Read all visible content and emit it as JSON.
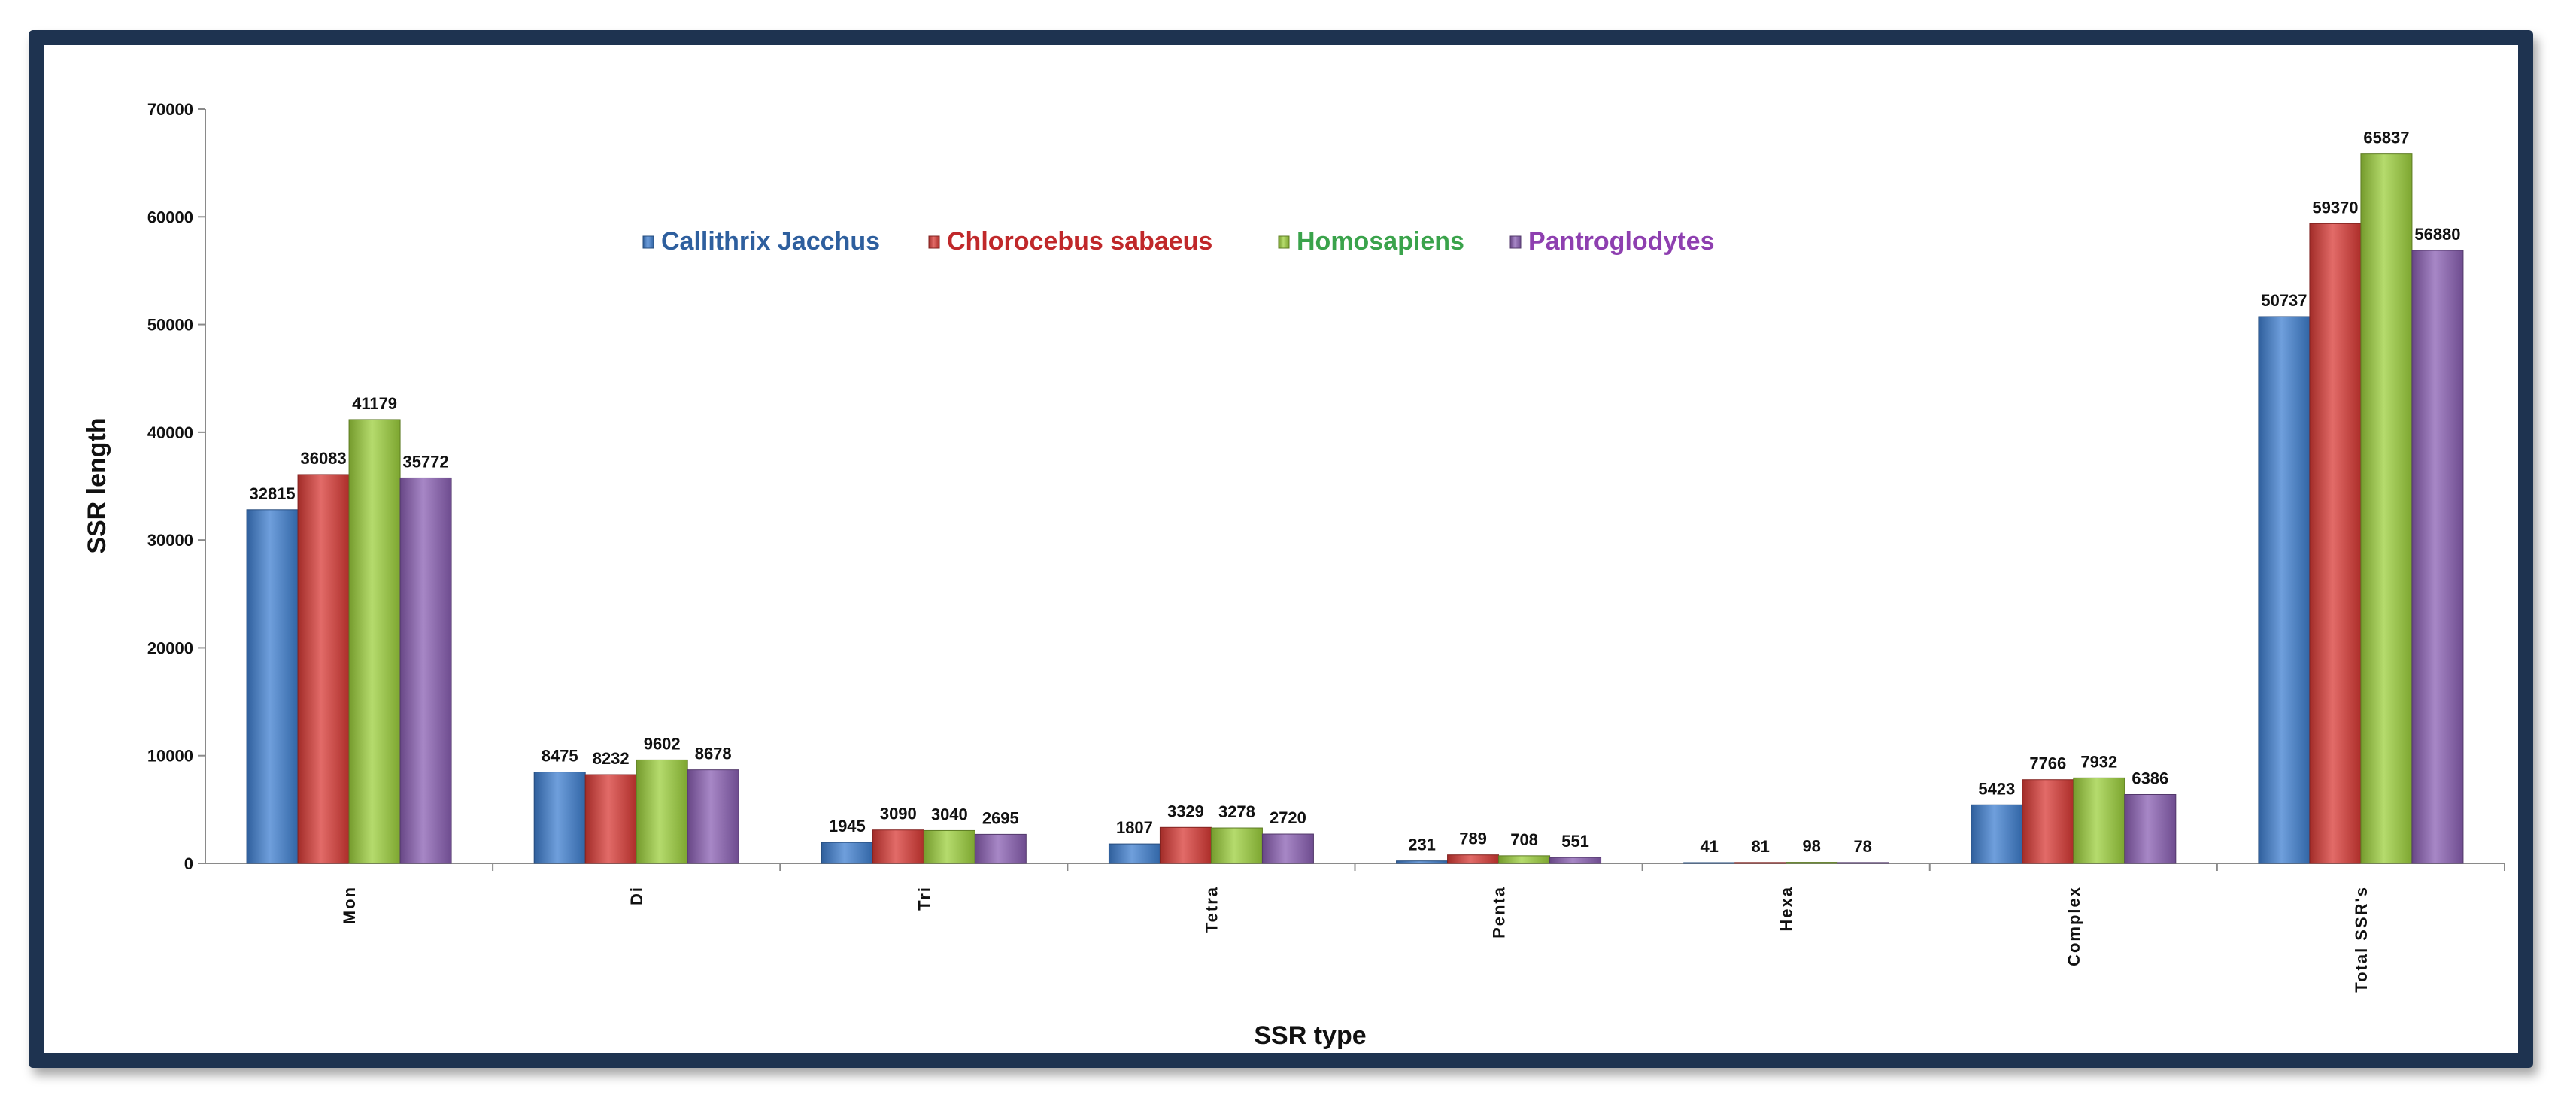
{
  "chart_data": {
    "type": "bar",
    "title": "",
    "xlabel": "SSR type",
    "ylabel": "SSR length",
    "ylim": [
      0,
      70000
    ],
    "yticks": [
      "0",
      "10000",
      "20000",
      "30000",
      "40000",
      "50000",
      "60000",
      "70000"
    ],
    "grid": false,
    "legend_position": "top-center",
    "categories": [
      "Mon",
      "Di",
      "Tri",
      "Tetra",
      "Penta",
      "Hexa",
      "Complex",
      "Total SSR's"
    ],
    "series": [
      {
        "name": "Callithrix Jacchus",
        "color": "#3f7fd0",
        "values": [
          32815,
          8475,
          1945,
          1807,
          231,
          41,
          5423,
          50737
        ]
      },
      {
        "name": "Chlorocebus sabaeus",
        "color": "#d83a35",
        "values": [
          36083,
          8232,
          3090,
          3329,
          789,
          81,
          7766,
          59370
        ]
      },
      {
        "name": "Homosapiens",
        "color": "#9ccf3c",
        "values": [
          41179,
          9602,
          3040,
          3278,
          708,
          98,
          7932,
          65837
        ]
      },
      {
        "name": "Pantroglodytes",
        "color": "#8a5fb3",
        "values": [
          35772,
          8678,
          2695,
          2720,
          551,
          78,
          6386,
          56880
        ]
      }
    ],
    "legend_text_colors": [
      "#2e5f9e",
      "#c0282a",
      "#3aa34b",
      "#8e3fb0"
    ]
  }
}
